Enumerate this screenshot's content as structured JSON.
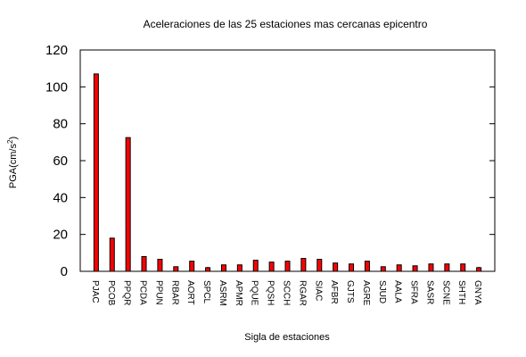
{
  "chart_data": {
    "type": "bar",
    "title": "Aceleraciones de las 25 estaciones mas cercanas epicentro",
    "xlabel": "Sigla de estaciones",
    "ylabel": {
      "main": "PGA(cm/s",
      "sup": "2",
      "close": ")"
    },
    "ylim": [
      0,
      120
    ],
    "yticks": [
      "0",
      "20",
      "40",
      "60",
      "80",
      "100",
      "120"
    ],
    "grid": false,
    "legend": "none",
    "bar_color": "#ff0000",
    "categories": [
      "PJAC",
      "PCOB",
      "PPQR",
      "PCDA",
      "PPUN",
      "RBAR",
      "AORT",
      "SPCL",
      "ASRM",
      "APMR",
      "PQUE",
      "PQSH",
      "SCCH",
      "RGAR",
      "SIAC",
      "AFBR",
      "GJTS",
      "AGRE",
      "SJUD",
      "AALA",
      "SFRA",
      "SASR",
      "SCNE",
      "SHTH",
      "GNYA"
    ],
    "values": [
      107,
      18,
      72.5,
      8,
      6.5,
      2.5,
      5.5,
      2,
      3.5,
      3.5,
      6,
      5,
      5.5,
      7,
      6.5,
      4.5,
      4,
      5.5,
      2.5,
      3.5,
      3,
      4,
      4,
      4,
      2
    ]
  }
}
